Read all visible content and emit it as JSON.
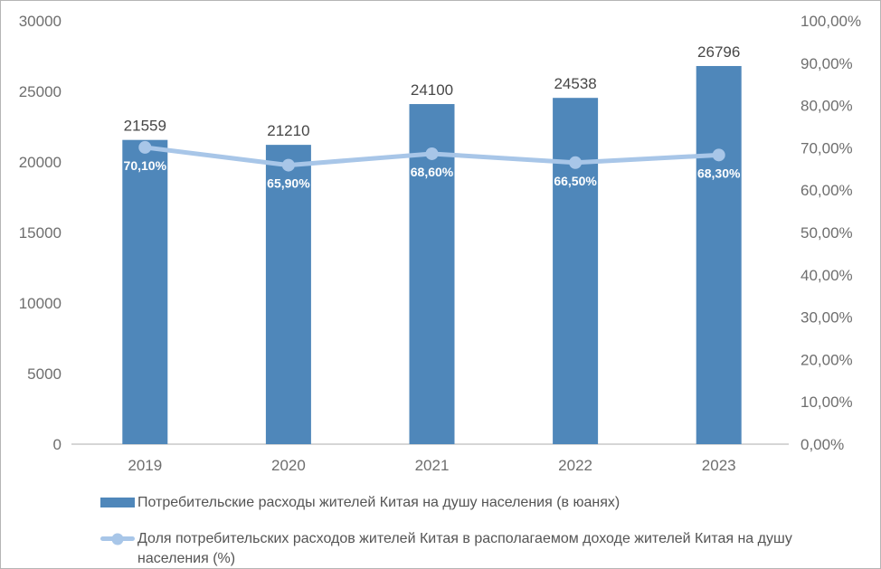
{
  "window": {
    "background": "#ffffff",
    "border_color": "#b5b5b5"
  },
  "chart_data": {
    "type": "combo-bar-line",
    "title": "",
    "categories": [
      "2019",
      "2020",
      "2021",
      "2022",
      "2023"
    ],
    "series": [
      {
        "name": "Потребительские расходы жителей Китая на душу населения (в юанях)",
        "type": "bar",
        "axis": "left",
        "values": [
          21559,
          21210,
          24100,
          24538,
          26796
        ],
        "data_labels": [
          "21559",
          "21210",
          "24100",
          "24538",
          "26796"
        ],
        "color": "#4f87ba"
      },
      {
        "name": "Доля потребительских расходов жителей Китая в располагаемом доходе жителей Китая на душу населения (%)",
        "type": "line",
        "axis": "right",
        "values": [
          70.1,
          65.9,
          68.6,
          66.5,
          68.3
        ],
        "data_labels": [
          "70,10%",
          "65,90%",
          "68,60%",
          "66,50%",
          "68,30%"
        ],
        "color": "#a8c6e8",
        "label_color": "#ffffff"
      }
    ],
    "left_axis": {
      "min": 0,
      "max": 30000,
      "step": 5000,
      "tick_labels": [
        "0",
        "5000",
        "10000",
        "15000",
        "20000",
        "25000",
        "30000"
      ]
    },
    "right_axis": {
      "min": 0,
      "max": 100,
      "step": 10,
      "tick_labels": [
        "0,00%",
        "10,00%",
        "20,00%",
        "30,00%",
        "40,00%",
        "50,00%",
        "60,00%",
        "70,00%",
        "80,00%",
        "90,00%",
        "100,00%"
      ]
    },
    "grid": false,
    "legend_position": "bottom-left",
    "styles": {
      "axis_text_color": "#6e6e6e",
      "value_label_color": "#474747",
      "axis_line_color": "#c9c9c9",
      "legend_text_color": "#545454"
    }
  }
}
